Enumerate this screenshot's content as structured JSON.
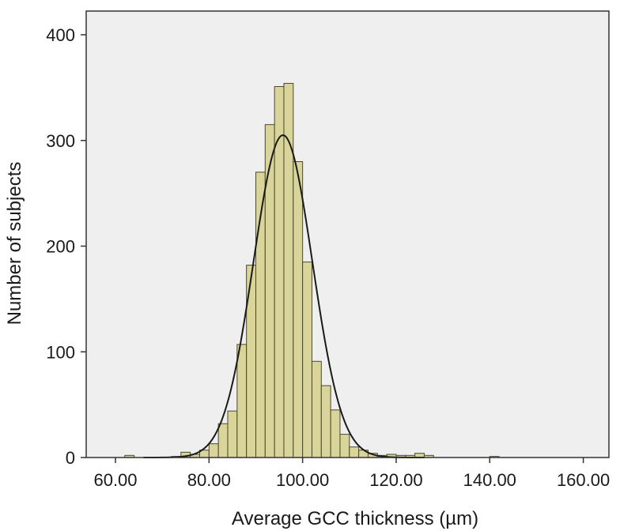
{
  "chart_data": {
    "type": "bar",
    "subtype": "histogram with normal curve overlay",
    "xlabel": "Average GCC thickness (µm)",
    "ylabel": "Number of subjects",
    "xlim": [
      55,
      162
    ],
    "ylim": [
      0,
      420
    ],
    "x_ticks": [
      {
        "value": 60,
        "label": "60.00"
      },
      {
        "value": 80,
        "label": "80.00"
      },
      {
        "value": 100,
        "label": "100.00"
      },
      {
        "value": 120,
        "label": "120.00"
      },
      {
        "value": 140,
        "label": "140.00"
      },
      {
        "value": 160,
        "label": "160.00"
      }
    ],
    "y_ticks": [
      {
        "value": 0,
        "label": "0"
      },
      {
        "value": 100,
        "label": "100"
      },
      {
        "value": 200,
        "label": "200"
      },
      {
        "value": 300,
        "label": "300"
      },
      {
        "value": 400,
        "label": "400"
      }
    ],
    "bin_width": 2,
    "bins": [
      {
        "start": 62,
        "count": 2
      },
      {
        "start": 72,
        "count": 1
      },
      {
        "start": 74,
        "count": 5
      },
      {
        "start": 76,
        "count": 3
      },
      {
        "start": 78,
        "count": 7
      },
      {
        "start": 80,
        "count": 13
      },
      {
        "start": 82,
        "count": 32
      },
      {
        "start": 84,
        "count": 44
      },
      {
        "start": 86,
        "count": 107
      },
      {
        "start": 88,
        "count": 182
      },
      {
        "start": 90,
        "count": 270
      },
      {
        "start": 92,
        "count": 315
      },
      {
        "start": 94,
        "count": 351
      },
      {
        "start": 96,
        "count": 354
      },
      {
        "start": 98,
        "count": 280
      },
      {
        "start": 100,
        "count": 185
      },
      {
        "start": 102,
        "count": 91
      },
      {
        "start": 104,
        "count": 68
      },
      {
        "start": 106,
        "count": 45
      },
      {
        "start": 108,
        "count": 22
      },
      {
        "start": 110,
        "count": 10
      },
      {
        "start": 112,
        "count": 7
      },
      {
        "start": 114,
        "count": 4
      },
      {
        "start": 116,
        "count": 2
      },
      {
        "start": 118,
        "count": 3
      },
      {
        "start": 120,
        "count": 2
      },
      {
        "start": 122,
        "count": 2
      },
      {
        "start": 124,
        "count": 4
      },
      {
        "start": 126,
        "count": 2
      },
      {
        "start": 140,
        "count": 1
      }
    ],
    "normal_curve": {
      "mean": 95.8,
      "sd": 6.3,
      "peak": 305
    },
    "colors": {
      "bar_fill": "#d8d49a",
      "bar_stroke": "#4a4a2a",
      "plot_background": "#efefef",
      "curve": "#1a1a1a",
      "frame": "#333333"
    },
    "grid": false,
    "legend": "none"
  }
}
